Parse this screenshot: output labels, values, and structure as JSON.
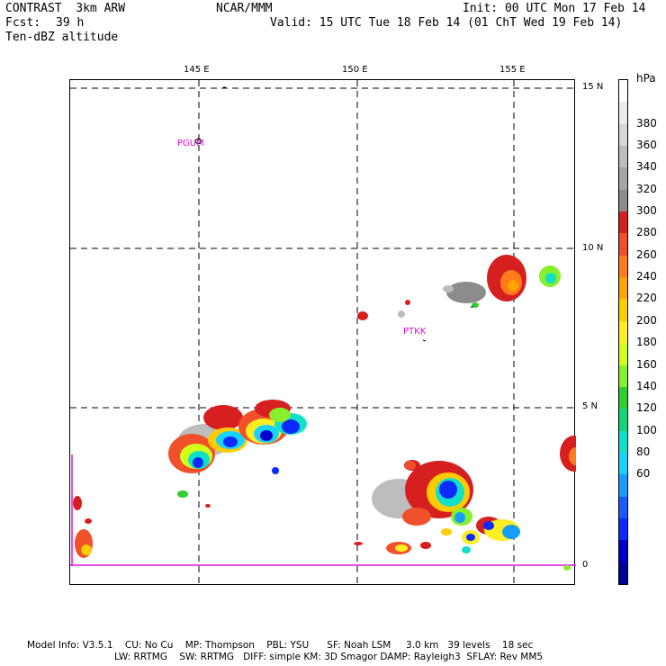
{
  "header": {
    "model": "CONTRAST  3km ARW",
    "center": "NCAR/MMM",
    "init": "Init: 00 UTC Mon 17 Feb 14",
    "fcst_label": "Fcst:",
    "fcst_value": "39 h",
    "valid": "Valid: 15 UTC Tue 18 Feb 14 (01 ChT Wed 19 Feb 14)",
    "field": "Ten-dBZ altitude"
  },
  "axes": {
    "lon_labels": [
      "145 E",
      "150 E",
      "155 E"
    ],
    "lat_labels": [
      "15 N",
      "10 N",
      "5 N",
      "0"
    ]
  },
  "stations": [
    "PGUM",
    "PTKK"
  ],
  "colorbar": {
    "unit": "hPa",
    "labels": [
      "380",
      "360",
      "340",
      "320",
      "300",
      "280",
      "260",
      "240",
      "220",
      "200",
      "180",
      "160",
      "140",
      "120",
      "100",
      "80",
      "60"
    ],
    "colors": [
      "#ffffff",
      "#ebebeb",
      "#d6d6d6",
      "#bdbdbd",
      "#a6a6a6",
      "#8c8c8c",
      "#d62020",
      "#f0502a",
      "#ff7b1c",
      "#ffa500",
      "#ffcc00",
      "#ffee22",
      "#cfff1a",
      "#88f02a",
      "#2ecf2e",
      "#11d67a",
      "#11e0c8",
      "#18d2ff",
      "#169dff",
      "#1a5bff",
      "#0a2aff",
      "#0000cc",
      "#00009a"
    ]
  },
  "footer": {
    "line1": "Model Info: V3.5.1    CU: No Cu    MP: Thompson    PBL: YSU      SF: Noah LSM     3.0 km   39 levels    18 sec",
    "line2": "LW: RRTMG    SW: RRTMG   DIFF: simple KM: 3D Smagor DAMP: Rayleigh3  SFLAY: Rev MM5"
  }
}
